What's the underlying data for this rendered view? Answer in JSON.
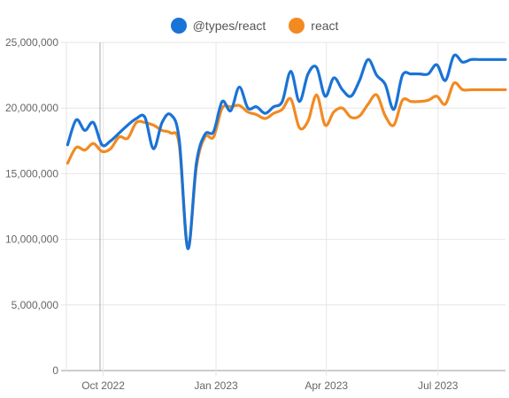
{
  "chart_data": {
    "type": "line",
    "title": "",
    "xlabel": "",
    "ylabel": "",
    "ylim": [
      0,
      25000000
    ],
    "xlim": [
      "2022-09-01",
      "2023-08-25"
    ],
    "grid": true,
    "legend_position": "top-center",
    "y_ticks": [
      {
        "value": 0,
        "label": "0"
      },
      {
        "value": 5000000,
        "label": "5,000,000"
      },
      {
        "value": 10000000,
        "label": "10,000,000"
      },
      {
        "value": 15000000,
        "label": "15,000,000"
      },
      {
        "value": 20000000,
        "label": "20,000,000"
      },
      {
        "value": 25000000,
        "label": "25,000,000"
      }
    ],
    "x_ticks": [
      {
        "date": "2022-10-01",
        "label": "Oct 2022"
      },
      {
        "date": "2023-01-01",
        "label": "Jan 2023"
      },
      {
        "date": "2023-04-01",
        "label": "Apr 2023"
      },
      {
        "date": "2023-07-01",
        "label": "Jul 2023"
      }
    ],
    "x": [
      "2022-09-02",
      "2022-09-09",
      "2022-09-16",
      "2022-09-23",
      "2022-09-30",
      "2022-10-07",
      "2022-10-14",
      "2022-10-21",
      "2022-10-28",
      "2022-11-04",
      "2022-11-11",
      "2022-11-18",
      "2022-11-25",
      "2022-12-02",
      "2022-12-09",
      "2022-12-16",
      "2022-12-23",
      "2022-12-30",
      "2023-01-06",
      "2023-01-13",
      "2023-01-20",
      "2023-01-27",
      "2023-02-03",
      "2023-02-10",
      "2023-02-17",
      "2023-02-24",
      "2023-03-03",
      "2023-03-10",
      "2023-03-17",
      "2023-03-24",
      "2023-03-31",
      "2023-04-07",
      "2023-04-14",
      "2023-04-21",
      "2023-04-28",
      "2023-05-05",
      "2023-05-12",
      "2023-05-19",
      "2023-05-26",
      "2023-06-02",
      "2023-06-09",
      "2023-06-16",
      "2023-06-23",
      "2023-06-30",
      "2023-07-07",
      "2023-07-14",
      "2023-07-21",
      "2023-07-28",
      "2023-08-04",
      "2023-08-11",
      "2023-08-18",
      "2023-08-25"
    ],
    "series": [
      {
        "name": "@types/react",
        "color": "#1a73d6",
        "values": [
          17200000,
          19100000,
          18300000,
          18900000,
          17200000,
          17500000,
          18100000,
          18700000,
          19200000,
          19300000,
          16900000,
          18900000,
          19500000,
          17600000,
          9300000,
          15800000,
          18000000,
          18200000,
          20500000,
          19800000,
          21600000,
          20000000,
          20100000,
          19600000,
          20100000,
          20500000,
          22800000,
          20500000,
          22600000,
          23100000,
          20900000,
          22300000,
          21400000,
          20900000,
          22100000,
          23700000,
          22500000,
          21800000,
          19900000,
          22500000,
          22600000,
          22600000,
          22600000,
          23300000,
          22100000,
          24000000,
          23500000,
          23700000,
          23700000,
          23700000,
          23700000,
          23700000
        ]
      },
      {
        "name": "react",
        "color": "#f28a21",
        "values": [
          15800000,
          17000000,
          16800000,
          17300000,
          16700000,
          16900000,
          17800000,
          17700000,
          18900000,
          18900000,
          18700000,
          18300000,
          18100000,
          17200000,
          9300000,
          15500000,
          17800000,
          17800000,
          20000000,
          20100000,
          20200000,
          19700000,
          19500000,
          19200000,
          19600000,
          19900000,
          20700000,
          18500000,
          19000000,
          21000000,
          18700000,
          19700000,
          20000000,
          19300000,
          19400000,
          20300000,
          21000000,
          19400000,
          18700000,
          20600000,
          20500000,
          20500000,
          20600000,
          20900000,
          20300000,
          21900000,
          21400000,
          21400000,
          21400000,
          21400000,
          21400000,
          21400000
        ]
      }
    ]
  }
}
